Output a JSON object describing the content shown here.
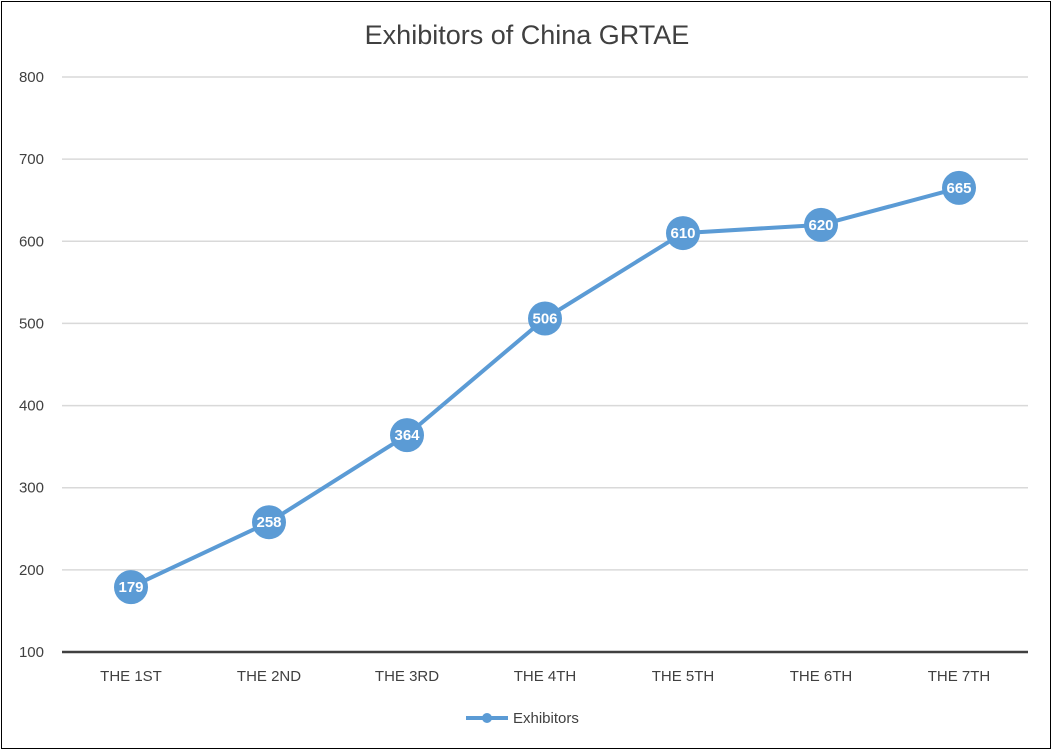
{
  "chart_data": {
    "type": "line",
    "title": "Exhibitors of China GRTAE",
    "categories": [
      "THE 1ST",
      "THE 2ND",
      "THE 3RD",
      "THE 4TH",
      "THE 5TH",
      "THE 6TH",
      "THE 7TH"
    ],
    "series": [
      {
        "name": "Exhibitors",
        "values": [
          179,
          258,
          364,
          506,
          610,
          620,
          665
        ]
      }
    ],
    "ylim": [
      100,
      800
    ],
    "yticks": [
      100,
      200,
      300,
      400,
      500,
      600,
      700,
      800
    ],
    "grid": true,
    "legend_position": "bottom",
    "data_labels": true,
    "colors": {
      "series": "#5B9BD5",
      "grid": "#D9D9D9",
      "axis": "#404040",
      "text": "#404040"
    }
  }
}
